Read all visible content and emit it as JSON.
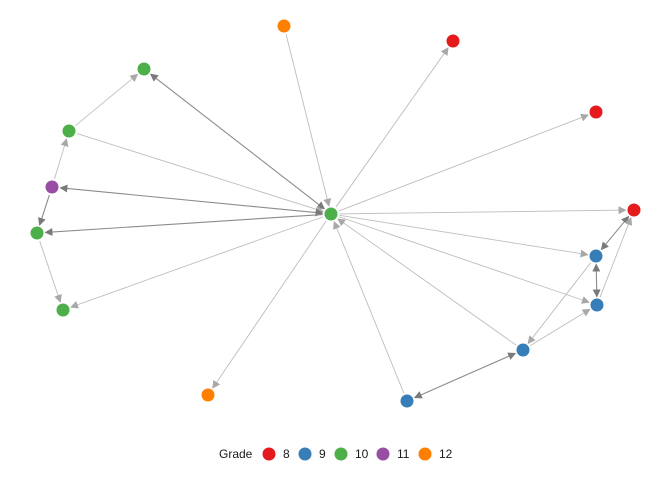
{
  "colors": {
    "8": "#e41a1c",
    "9": "#377eb8",
    "10": "#4daf4a",
    "11": "#984ea3",
    "12": "#ff7f00",
    "edge_light": "#bdbdbd",
    "edge_dark": "#8c8c8c"
  },
  "legend": {
    "title": "Grade",
    "items": [
      {
        "grade": "8",
        "label": "8"
      },
      {
        "grade": "9",
        "label": "9"
      },
      {
        "grade": "10",
        "label": "10"
      },
      {
        "grade": "11",
        "label": "11"
      },
      {
        "grade": "12",
        "label": "12"
      }
    ]
  },
  "network": {
    "nodes": [
      {
        "id": "hub",
        "grade": "10"
      },
      {
        "id": "o_top",
        "grade": "12"
      },
      {
        "id": "r_top",
        "grade": "8"
      },
      {
        "id": "r_right",
        "grade": "8"
      },
      {
        "id": "r_far",
        "grade": "8"
      },
      {
        "id": "g_top",
        "grade": "10"
      },
      {
        "id": "g_mid",
        "grade": "10"
      },
      {
        "id": "p_left",
        "grade": "11"
      },
      {
        "id": "g_left",
        "grade": "10"
      },
      {
        "id": "g_bottom",
        "grade": "10"
      },
      {
        "id": "o_bottom",
        "grade": "12"
      },
      {
        "id": "b_upper",
        "grade": "9"
      },
      {
        "id": "b_lower",
        "grade": "9"
      },
      {
        "id": "b_mid",
        "grade": "9"
      },
      {
        "id": "b_bottom",
        "grade": "9"
      }
    ],
    "edges": [
      {
        "from": "o_top",
        "to": "hub",
        "style": "light"
      },
      {
        "from": "hub",
        "to": "r_top",
        "style": "light"
      },
      {
        "from": "hub",
        "to": "r_right",
        "style": "light"
      },
      {
        "from": "hub",
        "to": "r_far",
        "style": "light"
      },
      {
        "from": "hub",
        "to": "g_top",
        "style": "dark",
        "both": true
      },
      {
        "from": "g_mid",
        "to": "hub",
        "style": "light"
      },
      {
        "from": "hub",
        "to": "p_left",
        "style": "dark",
        "both": true
      },
      {
        "from": "hub",
        "to": "g_left",
        "style": "dark"
      },
      {
        "from": "hub",
        "to": "g_bottom",
        "style": "light"
      },
      {
        "from": "hub",
        "to": "o_bottom",
        "style": "light"
      },
      {
        "from": "hub",
        "to": "b_upper",
        "style": "light"
      },
      {
        "from": "hub",
        "to": "b_lower",
        "style": "light"
      },
      {
        "from": "b_mid",
        "to": "hub",
        "style": "light"
      },
      {
        "from": "b_bottom",
        "to": "hub",
        "style": "light"
      },
      {
        "from": "g_mid",
        "to": "g_top",
        "style": "light"
      },
      {
        "from": "p_left",
        "to": "g_mid",
        "style": "light"
      },
      {
        "from": "p_left",
        "to": "g_left",
        "style": "dark"
      },
      {
        "from": "g_left",
        "to": "g_bottom",
        "style": "light"
      },
      {
        "from": "b_upper",
        "to": "r_far",
        "style": "dark",
        "both": true
      },
      {
        "from": "b_upper",
        "to": "b_lower",
        "style": "dark",
        "both": true
      },
      {
        "from": "b_lower",
        "to": "r_far",
        "style": "light"
      },
      {
        "from": "b_upper",
        "to": "b_mid",
        "style": "light"
      },
      {
        "from": "b_mid",
        "to": "b_lower",
        "style": "light"
      },
      {
        "from": "b_bottom",
        "to": "b_mid",
        "style": "dark",
        "both": true
      }
    ]
  }
}
